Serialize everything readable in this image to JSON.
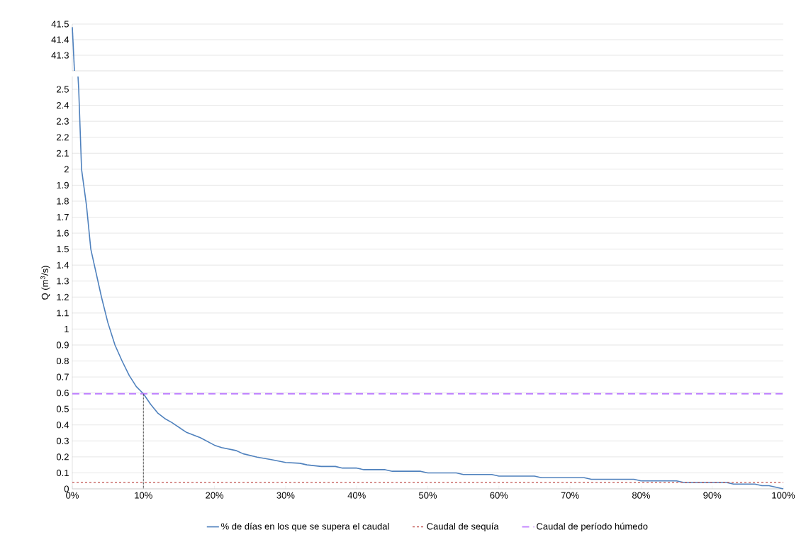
{
  "chart_data": [
    {
      "type": "line",
      "xlim": [
        0,
        100
      ],
      "ylim": [
        41.2,
        41.5
      ],
      "yticks": [
        41.3,
        41.4,
        41.5
      ],
      "grid": "y",
      "tick_labels": "y",
      "marker": "none",
      "series": [
        {
          "color": "#4f81bd",
          "x": [
            0,
            0.3
          ],
          "values": [
            41.48,
            41.2
          ]
        }
      ]
    },
    {
      "type": "line",
      "ylabel": "Q (m$^{3}$/s)",
      "xlim": [
        0,
        100
      ],
      "ylim": [
        0,
        2.58
      ],
      "xticks": [
        {
          "value": 0,
          "label": "0%"
        },
        {
          "value": 10,
          "label": "10%"
        },
        {
          "value": 20,
          "label": "20%"
        },
        {
          "value": 30,
          "label": "30%"
        },
        {
          "value": 40,
          "label": "40%"
        },
        {
          "value": 50,
          "label": "50%"
        },
        {
          "value": 60,
          "label": "60%"
        },
        {
          "value": 70,
          "label": "70%"
        },
        {
          "value": 80,
          "label": "80%"
        },
        {
          "value": 90,
          "label": "90%"
        },
        {
          "value": 100,
          "label": "100%"
        }
      ],
      "yticks": [
        0,
        0.1,
        0.2,
        0.3,
        0.4,
        0.5,
        0.6,
        0.7,
        0.8,
        0.9,
        1,
        1.1,
        1.2,
        1.3,
        1.4,
        1.5,
        1.6,
        1.7,
        1.8,
        1.9,
        2,
        2.1,
        2.2,
        2.3,
        2.4,
        2.5
      ],
      "grid": "y",
      "legend": "bottom",
      "marker": "none",
      "series": [
        {
          "name": "% de días en los que se supera el caudal",
          "color": "#4f81bd",
          "line_style": "solid",
          "x": [
            0.8,
            0.9,
            1.3,
            2,
            2.6,
            4.1,
            5,
            6,
            7,
            8,
            9,
            10,
            11,
            12,
            13,
            14,
            15,
            16,
            18,
            20,
            21,
            23,
            24,
            26,
            28,
            30,
            32,
            33,
            35,
            37,
            38,
            40,
            41,
            44,
            45,
            49,
            50,
            54,
            55,
            59,
            60,
            65,
            66,
            72,
            73,
            79,
            80,
            85,
            86,
            92,
            93,
            96,
            97,
            98,
            100
          ],
          "values": [
            2.58,
            2.5,
            2.0,
            1.77,
            1.5,
            1.2,
            1.04,
            0.9,
            0.8,
            0.71,
            0.64,
            0.595,
            0.53,
            0.475,
            0.44,
            0.415,
            0.385,
            0.355,
            0.32,
            0.273,
            0.258,
            0.24,
            0.22,
            0.198,
            0.183,
            0.165,
            0.16,
            0.15,
            0.14,
            0.14,
            0.13,
            0.13,
            0.12,
            0.12,
            0.11,
            0.11,
            0.1,
            0.1,
            0.09,
            0.09,
            0.08,
            0.08,
            0.07,
            0.07,
            0.06,
            0.06,
            0.05,
            0.05,
            0.04,
            0.04,
            0.03,
            0.03,
            0.02,
            0.02,
            0
          ]
        },
        {
          "name": "Caudal de sequía",
          "color": "#c0504d",
          "line_style": "dashed",
          "x": [
            0,
            100
          ],
          "values": [
            0.04,
            0.04
          ]
        },
        {
          "name": "Caudal de período húmedo",
          "color": "#bf7fff",
          "line_style": "dashed",
          "x": [
            0,
            100
          ],
          "values": [
            0.595,
            0.595
          ]
        },
        {
          "color": "#000000",
          "line_style": "dotted",
          "x": [
            10,
            10
          ],
          "values": [
            0.595,
            0
          ]
        }
      ]
    }
  ]
}
